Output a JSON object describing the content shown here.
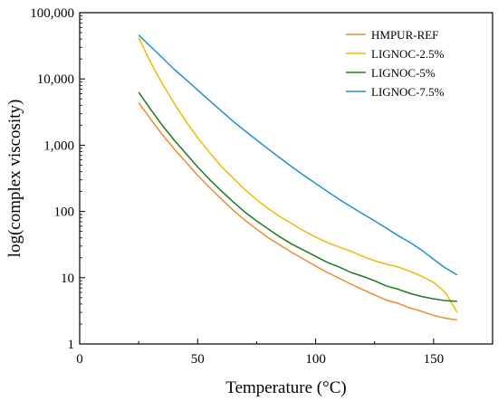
{
  "chart_data": {
    "type": "line",
    "title": "",
    "xlabel": "Temperature (°C)",
    "ylabel": "log(complex viscosity)",
    "xlim": [
      0,
      175
    ],
    "ylim": [
      1,
      100000
    ],
    "yscale": "log",
    "grid": false,
    "legend_position": "top-right",
    "x_ticks": [
      0,
      50,
      100,
      150
    ],
    "x_tick_labels": [
      "0",
      "50",
      "100",
      "150"
    ],
    "y_ticks": [
      1,
      10,
      100,
      1000,
      10000,
      100000
    ],
    "y_tick_labels": [
      "1",
      "10",
      "100",
      "1,000",
      "10,000",
      "100,000"
    ],
    "series": [
      {
        "name": "HMPUR-REF",
        "color": "#f08a2c",
        "x": [
          25,
          30,
          35,
          40,
          45,
          50,
          55,
          60,
          65,
          70,
          75,
          80,
          85,
          90,
          95,
          100,
          105,
          110,
          115,
          120,
          125,
          130,
          135,
          140,
          145,
          150,
          155,
          160
        ],
        "y": [
          4400,
          2500,
          1450,
          880,
          560,
          350,
          230,
          155,
          105,
          74,
          54,
          40,
          31,
          24,
          19,
          15,
          12,
          9.8,
          8.0,
          6.6,
          5.5,
          4.6,
          4.1,
          3.5,
          3.1,
          2.7,
          2.45,
          2.3
        ]
      },
      {
        "name": "LIGNOC-2.5%",
        "color": "#f5b800",
        "x": [
          25,
          30,
          35,
          40,
          45,
          50,
          55,
          60,
          65,
          70,
          75,
          80,
          85,
          90,
          95,
          100,
          105,
          110,
          115,
          120,
          125,
          130,
          135,
          140,
          145,
          150,
          155,
          160
        ],
        "y": [
          42000,
          18000,
          8500,
          4300,
          2300,
          1300,
          780,
          480,
          320,
          215,
          150,
          110,
          83,
          65,
          51,
          41,
          34,
          29,
          25,
          21,
          18,
          16,
          14.5,
          12.5,
          10.5,
          8.5,
          6,
          3.0
        ]
      },
      {
        "name": "LIGNOC-5%",
        "color": "#1f7a1f",
        "x": [
          25,
          30,
          35,
          40,
          45,
          50,
          55,
          60,
          65,
          70,
          75,
          80,
          85,
          90,
          95,
          100,
          105,
          110,
          115,
          120,
          125,
          130,
          135,
          140,
          145,
          150,
          155,
          160
        ],
        "y": [
          6300,
          3500,
          2000,
          1200,
          750,
          470,
          305,
          205,
          140,
          98,
          72,
          54,
          41,
          32,
          26,
          21,
          17,
          14.5,
          12,
          10.5,
          9.0,
          7.5,
          6.7,
          5.8,
          5.2,
          4.8,
          4.5,
          4.4
        ]
      },
      {
        "name": "LIGNOC-7.5%",
        "color": "#1f8fd1",
        "x": [
          25,
          30,
          35,
          40,
          45,
          50,
          55,
          60,
          65,
          70,
          75,
          80,
          85,
          90,
          95,
          100,
          105,
          110,
          115,
          120,
          125,
          130,
          135,
          140,
          145,
          150,
          155,
          160
        ],
        "y": [
          46000,
          31000,
          21000,
          14000,
          9800,
          6800,
          4700,
          3300,
          2300,
          1650,
          1200,
          870,
          640,
          470,
          350,
          265,
          200,
          152,
          118,
          92,
          72,
          56,
          43,
          34,
          26,
          19,
          14,
          11
        ]
      }
    ]
  }
}
